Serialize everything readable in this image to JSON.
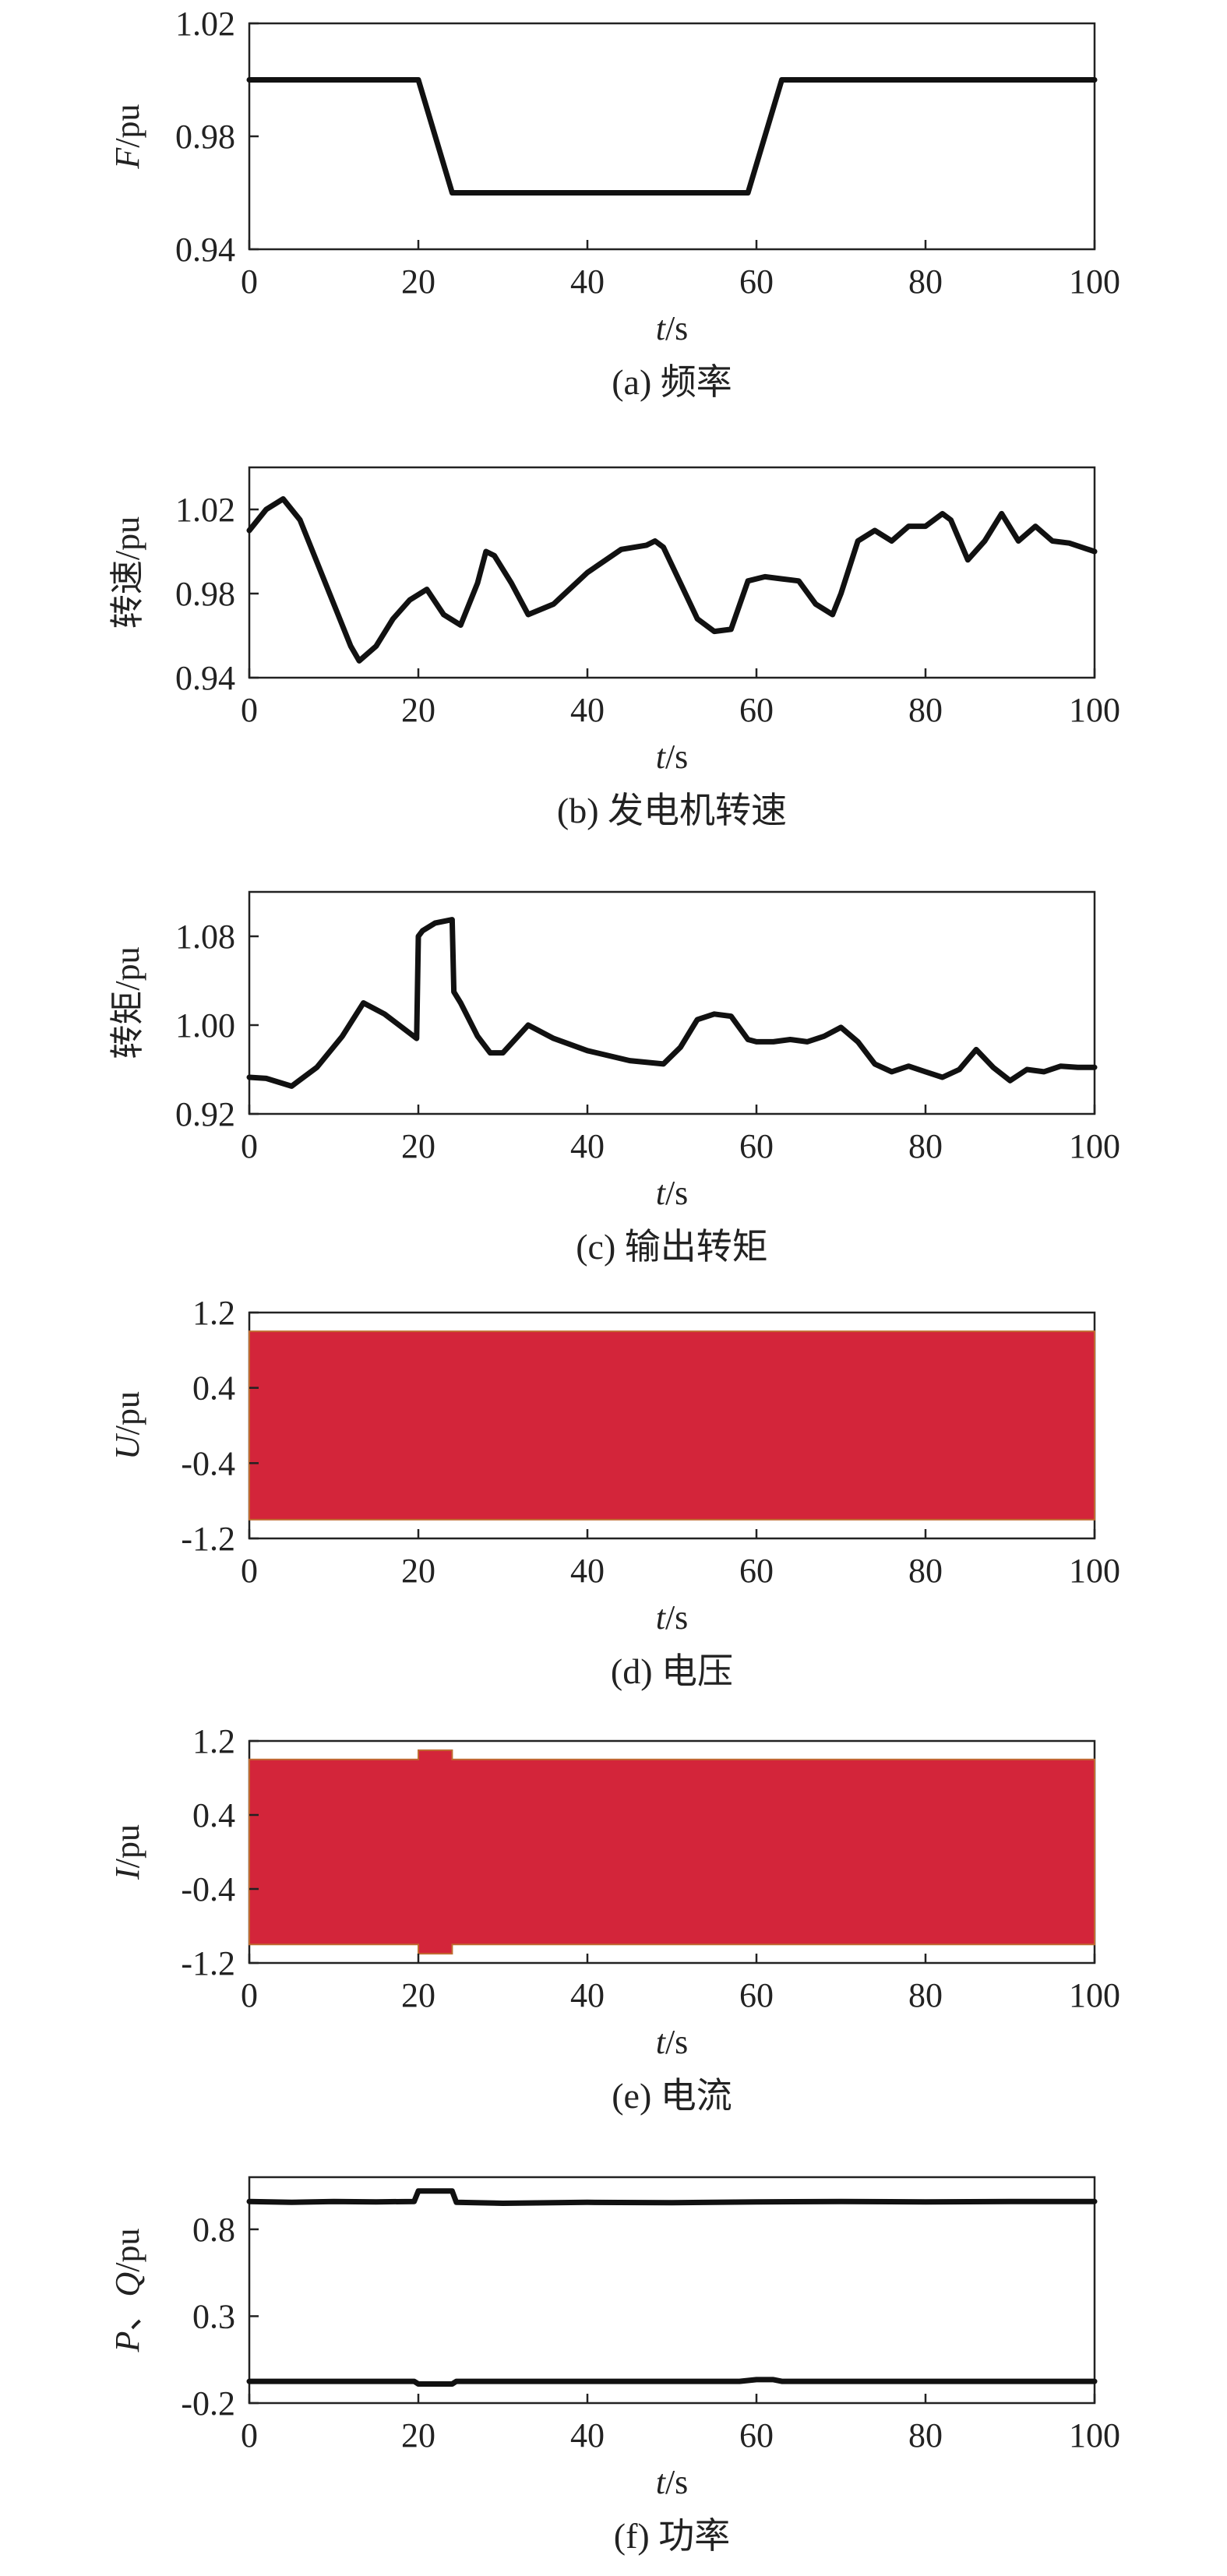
{
  "colors": {
    "line": "#111111",
    "band": "#d3253a",
    "band_edge": "#c06a30"
  },
  "chart_data": [
    {
      "id": "a",
      "type": "line",
      "caption": "(a) 频率",
      "xlabel_italic": "t",
      "xlabel_unit": "/s",
      "ylabel_italic": "F",
      "ylabel_unit": "/pu",
      "xlim": [
        0,
        100
      ],
      "ylim": [
        0.94,
        1.02
      ],
      "xticks": [
        0,
        20,
        40,
        60,
        80,
        100
      ],
      "yticks": [
        0.94,
        0.98,
        1.02
      ],
      "ytick_labels": [
        "0.94",
        "0.98",
        "1.02"
      ],
      "series": [
        {
          "x": [
            0,
            20,
            24,
            59,
            63,
            100
          ],
          "y": [
            1.0,
            1.0,
            0.96,
            0.96,
            1.0,
            1.0
          ]
        }
      ]
    },
    {
      "id": "b",
      "type": "line",
      "caption": "(b) 发电机转速",
      "xlabel_italic": "t",
      "xlabel_unit": "/s",
      "ylabel_italic": "",
      "ylabel_unit": "转速/pu",
      "xlim": [
        0,
        100
      ],
      "ylim": [
        0.94,
        1.04
      ],
      "xticks": [
        0,
        20,
        40,
        60,
        80,
        100
      ],
      "yticks": [
        0.94,
        0.98,
        1.02
      ],
      "ytick_labels": [
        "0.94",
        "0.98",
        "1.02"
      ],
      "series": [
        {
          "x": [
            0,
            2,
            4,
            6,
            8,
            10,
            12,
            13,
            15,
            17,
            19,
            21,
            23,
            25,
            27,
            28,
            29,
            31,
            33,
            36,
            40,
            44,
            47,
            48,
            49,
            51,
            53,
            55,
            57,
            59,
            61,
            63,
            65,
            67,
            69,
            70,
            72,
            74,
            76,
            78,
            80,
            82,
            83,
            85,
            87,
            89,
            91,
            93,
            95,
            97,
            100
          ],
          "y": [
            1.01,
            1.02,
            1.025,
            1.015,
            0.995,
            0.975,
            0.955,
            0.948,
            0.955,
            0.968,
            0.977,
            0.982,
            0.97,
            0.965,
            0.985,
            1.0,
            0.998,
            0.985,
            0.97,
            0.975,
            0.99,
            1.001,
            1.003,
            1.005,
            1.002,
            0.985,
            0.968,
            0.962,
            0.963,
            0.986,
            0.988,
            0.987,
            0.986,
            0.975,
            0.97,
            0.98,
            1.005,
            1.01,
            1.005,
            1.012,
            1.012,
            1.018,
            1.015,
            0.996,
            1.005,
            1.018,
            1.005,
            1.012,
            1.005,
            1.004,
            1.0
          ]
        }
      ]
    },
    {
      "id": "c",
      "type": "line",
      "caption": "(c) 输出转矩",
      "xlabel_italic": "t",
      "xlabel_unit": "/s",
      "ylabel_italic": "",
      "ylabel_unit": "转矩/pu",
      "xlim": [
        0,
        100
      ],
      "ylim": [
        0.92,
        1.12
      ],
      "xticks": [
        0,
        20,
        40,
        60,
        80,
        100
      ],
      "yticks": [
        0.92,
        1.0,
        1.08
      ],
      "ytick_labels": [
        "0.92",
        "1.00",
        "1.08"
      ],
      "series": [
        {
          "x": [
            0,
            2,
            5,
            8,
            11,
            13.5,
            16,
            19.8,
            20,
            20.5,
            22,
            24,
            24.2,
            25,
            27,
            28.5,
            30,
            33,
            36,
            40,
            45,
            49,
            51,
            53,
            55,
            57,
            59,
            60,
            62,
            64,
            66,
            68,
            70,
            72,
            74,
            76,
            78,
            80,
            82,
            84,
            86,
            88,
            90,
            92,
            94,
            96,
            98,
            100
          ],
          "y": [
            0.953,
            0.952,
            0.945,
            0.962,
            0.99,
            1.02,
            1.01,
            0.988,
            1.08,
            1.085,
            1.092,
            1.095,
            1.03,
            1.02,
            0.99,
            0.975,
            0.975,
            1.0,
            0.988,
            0.977,
            0.968,
            0.965,
            0.98,
            1.005,
            1.01,
            1.008,
            0.987,
            0.985,
            0.985,
            0.987,
            0.985,
            0.99,
            0.998,
            0.985,
            0.965,
            0.958,
            0.963,
            0.958,
            0.953,
            0.96,
            0.978,
            0.962,
            0.95,
            0.96,
            0.958,
            0.963,
            0.962,
            0.962
          ]
        }
      ]
    },
    {
      "id": "d",
      "type": "area",
      "caption": "(d) 电压",
      "xlabel_italic": "t",
      "xlabel_unit": "/s",
      "ylabel_italic": "U",
      "ylabel_unit": "/pu",
      "xlim": [
        0,
        100
      ],
      "ylim": [
        -1.2,
        1.2
      ],
      "xticks": [
        0,
        20,
        40,
        60,
        80,
        100
      ],
      "yticks": [
        -1.2,
        -0.4,
        0.4,
        1.2
      ],
      "ytick_labels": [
        "-1.2",
        "-0.4",
        "0.4",
        "1.2"
      ],
      "band": {
        "x": [
          0,
          100
        ],
        "upper": [
          1.0,
          1.0
        ],
        "lower": [
          -1.0,
          -1.0
        ]
      }
    },
    {
      "id": "e",
      "type": "area",
      "caption": "(e) 电流",
      "xlabel_italic": "I",
      "xlabel_unit": "",
      "xlabel": "t/s",
      "ylabel_italic": "I",
      "ylabel_unit": "/pu",
      "xlim": [
        0,
        100
      ],
      "ylim": [
        -1.2,
        1.2
      ],
      "xticks": [
        0,
        20,
        40,
        60,
        80,
        100
      ],
      "yticks": [
        -1.2,
        -0.4,
        0.4,
        1.2
      ],
      "ytick_labels": [
        "-1.2",
        "-0.4",
        "0.4",
        "1.2"
      ],
      "band": {
        "x": [
          0,
          20,
          20,
          24,
          24,
          100
        ],
        "upper": [
          1.0,
          1.0,
          1.1,
          1.1,
          1.0,
          1.0
        ],
        "lower": [
          -1.0,
          -1.0,
          -1.1,
          -1.1,
          -1.0,
          -1.0
        ]
      }
    },
    {
      "id": "f",
      "type": "line",
      "caption": "(f) 功率",
      "xlabel_italic": "t",
      "xlabel_unit": "/s",
      "ylabel_parts": [
        "P",
        "、",
        "Q",
        "/pu"
      ],
      "xlim": [
        0,
        100
      ],
      "ylim": [
        -0.2,
        1.1
      ],
      "xticks": [
        0,
        20,
        40,
        60,
        80,
        100
      ],
      "yticks": [
        -0.2,
        0.3,
        0.8
      ],
      "ytick_labels": [
        "-0.2",
        "0.3",
        "0.8"
      ],
      "series": [
        {
          "x": [
            0,
            5,
            10,
            15,
            19.5,
            20,
            24,
            24.5,
            30,
            40,
            50,
            60,
            70,
            80,
            90,
            100
          ],
          "y": [
            0.96,
            0.955,
            0.96,
            0.958,
            0.96,
            1.02,
            1.02,
            0.955,
            0.95,
            0.955,
            0.953,
            0.958,
            0.96,
            0.958,
            0.96,
            0.96
          ]
        },
        {
          "x": [
            0,
            10,
            19.5,
            20,
            24,
            24.5,
            40,
            58,
            60,
            62,
            63,
            80,
            100
          ],
          "y": [
            -0.075,
            -0.075,
            -0.075,
            -0.09,
            -0.09,
            -0.075,
            -0.075,
            -0.075,
            -0.065,
            -0.065,
            -0.075,
            -0.075,
            -0.075
          ]
        }
      ]
    }
  ]
}
